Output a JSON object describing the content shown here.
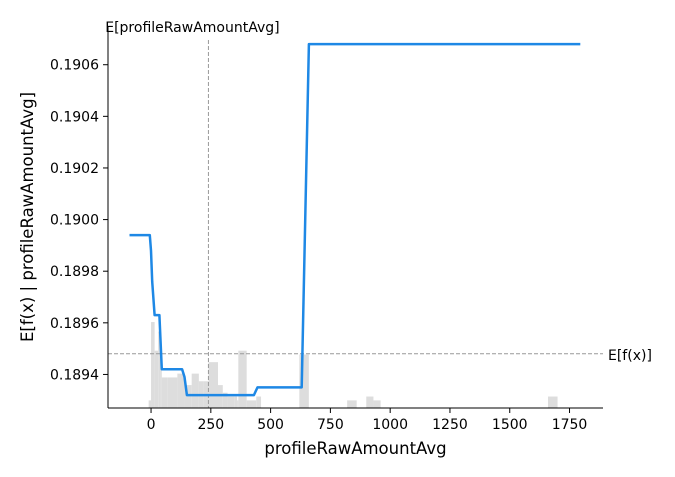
{
  "chart_data": {
    "type": "line",
    "title": "",
    "xlabel": "profileRawAmountAvg",
    "ylabel": "E[f(x) | profileRawAmountAvg]",
    "xlim": [
      -180,
      1890
    ],
    "ylim": [
      0.18927,
      0.19075
    ],
    "x_ticks": [
      0,
      250,
      500,
      750,
      1000,
      1250,
      1500,
      1750
    ],
    "x_tick_labels": [
      "0",
      "250",
      "500",
      "750",
      "1000",
      "1250",
      "1500",
      "1750"
    ],
    "y_ticks": [
      0.1894,
      0.1896,
      0.1898,
      0.19,
      0.1902,
      0.1904,
      0.1906
    ],
    "y_tick_labels": [
      "0.1894",
      "0.1896",
      "0.1898",
      "0.1900",
      "0.1902",
      "0.1904",
      "0.1906"
    ],
    "grid": false,
    "colors": {
      "line": "#1E88E5",
      "hist": "#dddddd",
      "ref": "#999999",
      "axis": "#000000"
    },
    "series": [
      {
        "name": "",
        "x": [
          -90,
          -5,
          0,
          5,
          15,
          25,
          35,
          45,
          60,
          80,
          100,
          120,
          130,
          140,
          150,
          200,
          250,
          300,
          350,
          400,
          430,
          445,
          455,
          470,
          500,
          550,
          600,
          630,
          660,
          675,
          700,
          800,
          1000,
          1200,
          1400,
          1600,
          1795
        ],
        "y": [
          0.18994,
          0.18994,
          0.18988,
          0.18976,
          0.18963,
          0.18963,
          0.18963,
          0.18942,
          0.18942,
          0.18942,
          0.18942,
          0.18942,
          0.18942,
          0.18939,
          0.18932,
          0.18932,
          0.18932,
          0.18932,
          0.18932,
          0.18932,
          0.18932,
          0.18935,
          0.18935,
          0.18935,
          0.18935,
          0.18935,
          0.18935,
          0.18935,
          0.19068,
          0.19068,
          0.19068,
          0.19068,
          0.19068,
          0.19068,
          0.19068,
          0.19068,
          0.19068
        ]
      }
    ],
    "histogram": {
      "bin_edges": [
        -10,
        0,
        15,
        30,
        40,
        45,
        70,
        110,
        140,
        170,
        200,
        220,
        240,
        280,
        300,
        320,
        350,
        360,
        365,
        400,
        440,
        460,
        620,
        660,
        820,
        860,
        900,
        930,
        960,
        1660,
        1700
      ],
      "heights": [
        0.02,
        0.225,
        0.15,
        0.2,
        0.11,
        0.08,
        0.08,
        0.09,
        0.06,
        0.09,
        0.07,
        0.07,
        0.12,
        0.06,
        0.04,
        0.03,
        0.03,
        0.02,
        0.15,
        0.02,
        0.03,
        0.0,
        0.14,
        0.0,
        0.02,
        0.0,
        0.03,
        0.02,
        0.0,
        0.03
      ]
    },
    "reference_lines": {
      "expected_x": {
        "value": 240,
        "label": "E[profileRawAmountAvg]"
      },
      "expected_y": {
        "value": 0.18948,
        "label": "E[f(x)]"
      }
    }
  }
}
